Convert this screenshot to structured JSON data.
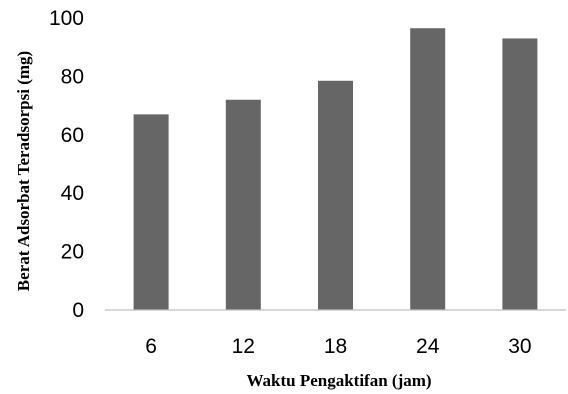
{
  "chart_data": {
    "type": "bar",
    "categories": [
      "6",
      "12",
      "18",
      "24",
      "30"
    ],
    "values": [
      67,
      72,
      78.5,
      96.5,
      93
    ],
    "title": "",
    "xlabel": "Waktu Pengaktifan (jam)",
    "ylabel": "Berat Adsorbat Teradsorpsi (mg)",
    "ylim": [
      0,
      100
    ],
    "yticks": [
      "0",
      "20",
      "40",
      "60",
      "80",
      "100"
    ],
    "grid": false,
    "legend": "none",
    "bar_color": "#666666"
  }
}
